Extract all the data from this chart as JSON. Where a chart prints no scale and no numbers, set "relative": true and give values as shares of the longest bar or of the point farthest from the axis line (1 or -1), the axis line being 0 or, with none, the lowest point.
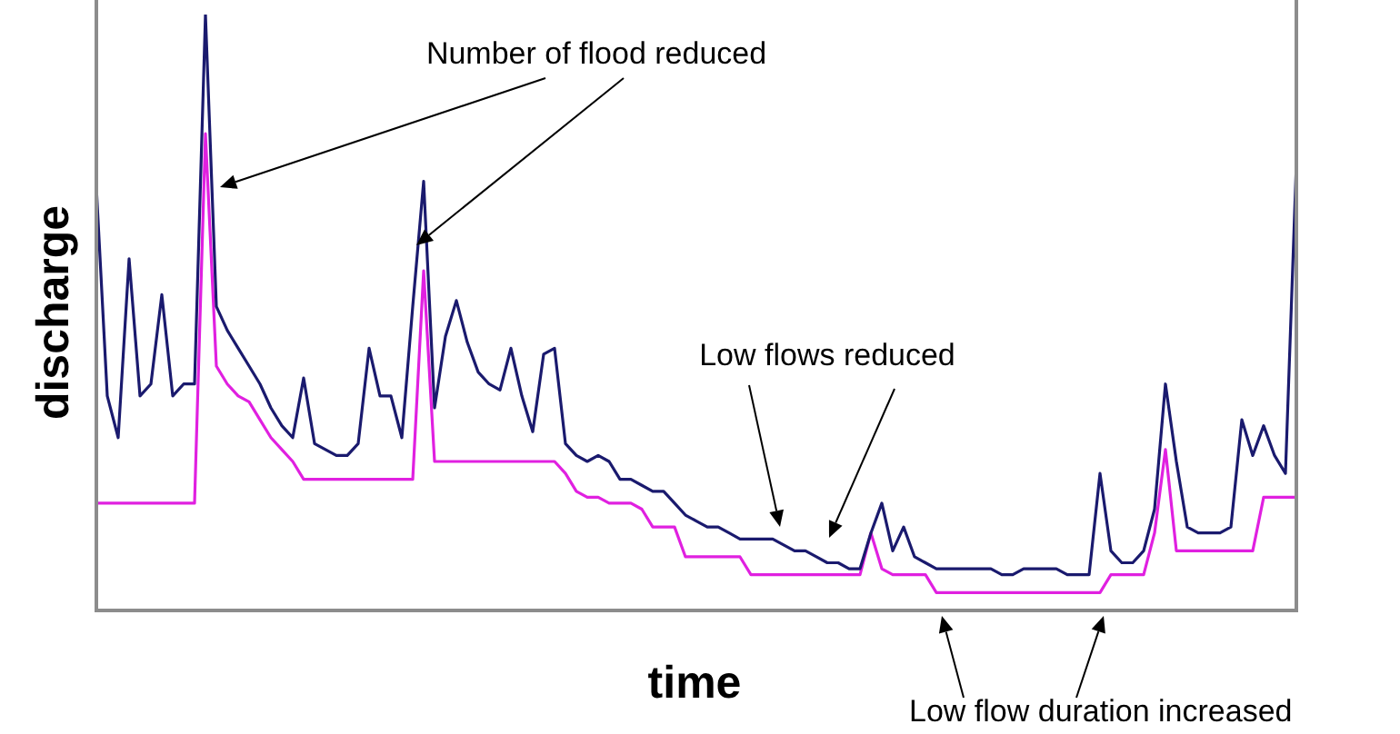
{
  "chart_data": {
    "type": "line",
    "relative": true,
    "xlabel": "time",
    "ylabel": "discharge",
    "legend": false,
    "marker": "none",
    "tick_labels": false,
    "categories": [
      null,
      null,
      null,
      null,
      null,
      null,
      null,
      null,
      null,
      null,
      null,
      null,
      null,
      null,
      null,
      null,
      null,
      null,
      null,
      null,
      null,
      null,
      null,
      null,
      null,
      null,
      null,
      null,
      null,
      null,
      null,
      null,
      null,
      null,
      null,
      null,
      null,
      null,
      null,
      null,
      null,
      null,
      null,
      null,
      null,
      null,
      null,
      null,
      null,
      null,
      null,
      null,
      null,
      null,
      null,
      null,
      null,
      null,
      null,
      null,
      null,
      null,
      null,
      null,
      null,
      null,
      null,
      null,
      null,
      null,
      null,
      null,
      null,
      null,
      null,
      null,
      null,
      null,
      null,
      null,
      null,
      null,
      null,
      null,
      null,
      null,
      null,
      null,
      null,
      null,
      null,
      null,
      null,
      null,
      null,
      null,
      null,
      null,
      null,
      null,
      null,
      null,
      null,
      null,
      null,
      null,
      null,
      null,
      null,
      null,
      null
    ],
    "series": [
      {
        "color": "#1a1a6e",
        "values": [
          0.71,
          0.36,
          0.29,
          0.59,
          0.36,
          0.38,
          0.53,
          0.36,
          0.38,
          0.38,
          1,
          0.51,
          0.47,
          0.44,
          0.41,
          0.38,
          0.34,
          0.31,
          0.29,
          0.39,
          0.28,
          0.27,
          0.26,
          0.26,
          0.28,
          0.44,
          0.36,
          0.36,
          0.29,
          0.51,
          0.72,
          0.34,
          0.46,
          0.52,
          0.45,
          0.4,
          0.38,
          0.37,
          0.44,
          0.36,
          0.3,
          0.43,
          0.44,
          0.28,
          0.26,
          0.25,
          0.26,
          0.25,
          0.22,
          0.22,
          0.21,
          0.2,
          0.2,
          0.18,
          0.16,
          0.15,
          0.14,
          0.14,
          0.13,
          0.12,
          0.12,
          0.12,
          0.12,
          0.11,
          0.1,
          0.1,
          0.09,
          0.08,
          0.08,
          0.07,
          0.07,
          0.13,
          0.18,
          0.1,
          0.14,
          0.09,
          0.08,
          0.07,
          0.07,
          0.07,
          0.07,
          0.07,
          0.07,
          0.06,
          0.06,
          0.07,
          0.07,
          0.07,
          0.07,
          0.06,
          0.06,
          0.06,
          0.23,
          0.1,
          0.08,
          0.08,
          0.1,
          0.17,
          0.38,
          0.25,
          0.14,
          0.13,
          0.13,
          0.13,
          0.14,
          0.32,
          0.26,
          0.31,
          0.26,
          0.23,
          0.75
        ]
      },
      {
        "color": "#e020e0",
        "values": [
          0.18,
          0.18,
          0.18,
          0.18,
          0.18,
          0.18,
          0.18,
          0.18,
          0.18,
          0.18,
          0.8,
          0.41,
          0.38,
          0.36,
          0.35,
          0.32,
          0.29,
          0.27,
          0.25,
          0.22,
          0.22,
          0.22,
          0.22,
          0.22,
          0.22,
          0.22,
          0.22,
          0.22,
          0.22,
          0.22,
          0.57,
          0.25,
          0.25,
          0.25,
          0.25,
          0.25,
          0.25,
          0.25,
          0.25,
          0.25,
          0.25,
          0.25,
          0.25,
          0.23,
          0.2,
          0.19,
          0.19,
          0.18,
          0.18,
          0.18,
          0.17,
          0.14,
          0.14,
          0.14,
          0.09,
          0.09,
          0.09,
          0.09,
          0.09,
          0.09,
          0.06,
          0.06,
          0.06,
          0.06,
          0.06,
          0.06,
          0.06,
          0.06,
          0.06,
          0.06,
          0.06,
          0.13,
          0.07,
          0.06,
          0.06,
          0.06,
          0.06,
          0.03,
          0.03,
          0.03,
          0.03,
          0.03,
          0.03,
          0.03,
          0.03,
          0.03,
          0.03,
          0.03,
          0.03,
          0.03,
          0.03,
          0.03,
          0.03,
          0.06,
          0.06,
          0.06,
          0.06,
          0.13,
          0.27,
          0.1,
          0.1,
          0.1,
          0.1,
          0.1,
          0.1,
          0.1,
          0.1,
          0.19,
          0.19,
          0.19,
          0.19
        ]
      }
    ],
    "annotations": [
      "Number of flood reduced",
      "Low flows reduced",
      "Low flow duration increased"
    ]
  }
}
